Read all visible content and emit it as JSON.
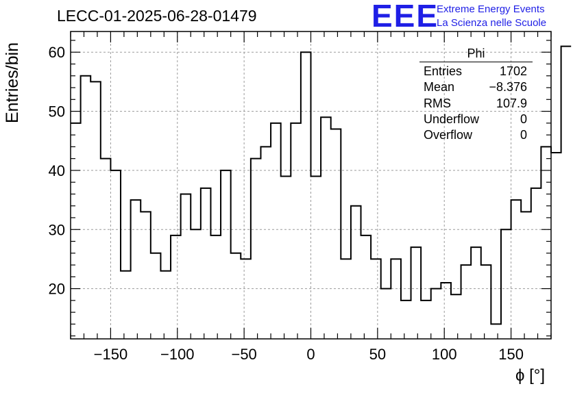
{
  "title": "LECC-01-2025-06-28-01479",
  "logo": {
    "mark": "EEE",
    "line1": "Extreme Energy Events",
    "line2": "La Scienza nelle Scuole",
    "color": "#1f1fe6"
  },
  "stats": {
    "name": "Phi",
    "rows": [
      {
        "label": "Entries",
        "value": "1702"
      },
      {
        "label": "Mean",
        "value": "−8.376"
      },
      {
        "label": "RMS",
        "value": "107.9"
      },
      {
        "label": "Underflow",
        "value": "0"
      },
      {
        "label": "Overflow",
        "value": "0"
      }
    ]
  },
  "chart_data": {
    "type": "bar",
    "style": "step-histogram",
    "title": "LECC-01-2025-06-28-01479",
    "xlabel": "ϕ [°]",
    "ylabel": "Entries/bin",
    "xlim": [
      -180,
      180
    ],
    "ylim": [
      11.5,
      63.5
    ],
    "bin_width": 7.5,
    "xticks": [
      -150,
      -100,
      -50,
      0,
      50,
      100,
      150
    ],
    "xtick_labels": [
      "−150",
      "−100",
      "−50",
      "0",
      "50",
      "100",
      "150"
    ],
    "yticks": [
      20,
      30,
      40,
      50,
      60
    ],
    "grid": true,
    "line_color": "#000000",
    "grid_color": "#9a9a9a",
    "values": [
      48,
      56,
      55,
      42,
      40,
      23,
      35,
      33,
      26,
      23,
      29,
      36,
      30,
      37,
      29,
      40,
      26,
      25,
      42,
      44,
      48,
      39,
      48,
      60,
      39,
      49,
      47,
      25,
      34,
      29,
      25,
      20,
      25,
      18,
      27,
      18,
      20,
      21,
      19,
      24,
      27,
      24,
      14,
      30,
      35,
      33,
      37,
      44,
      43,
      61
    ]
  }
}
